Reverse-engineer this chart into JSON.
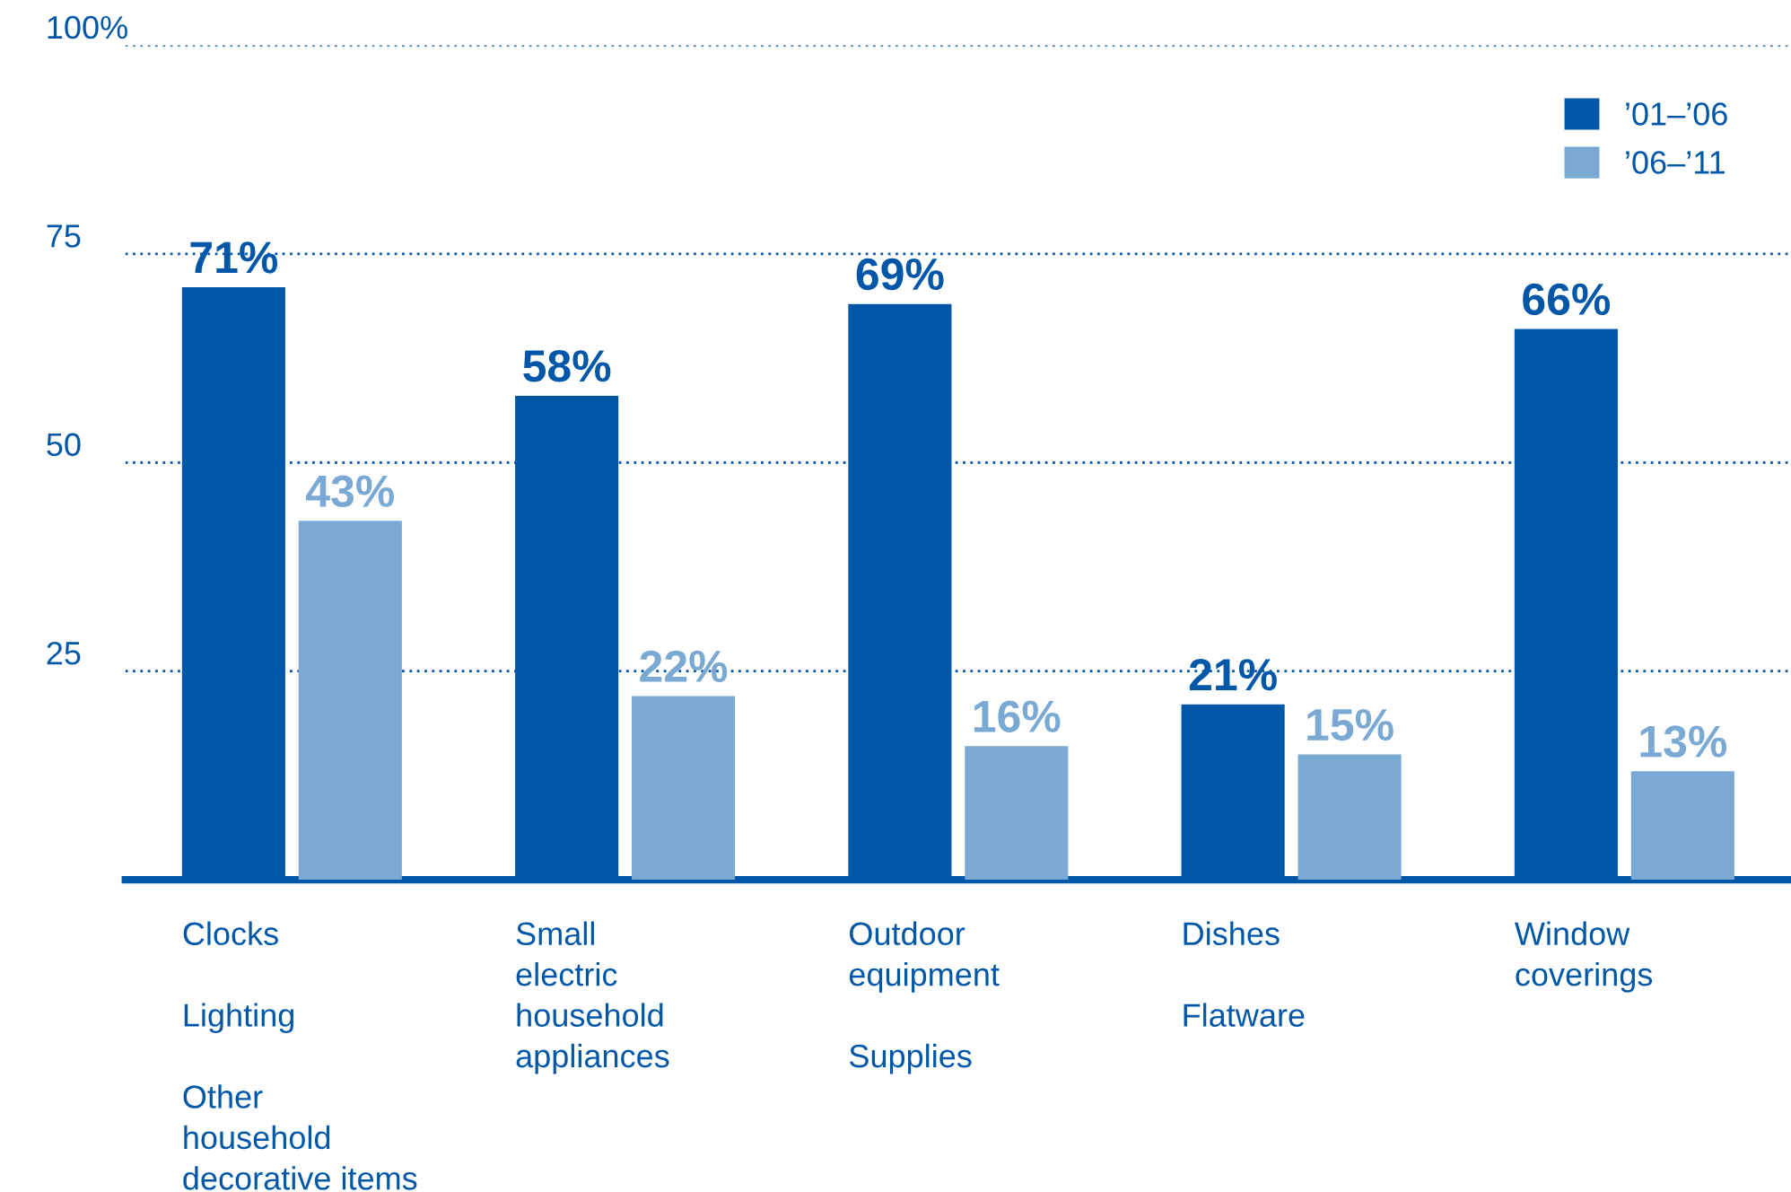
{
  "chart_data": {
    "type": "bar",
    "categories": [
      "Clocks\n\nLighting\n\nOther\nhousehold\ndecorative items",
      "Small\nelectric\nhousehold\nappliances",
      "Outdoor\nequipment\n\nSupplies",
      "Dishes\n\nFlatware",
      "Window\ncoverings"
    ],
    "series": [
      {
        "name": "’01–’06",
        "color": "#0057a8",
        "values": [
          71,
          58,
          69,
          21,
          66
        ],
        "value_labels": [
          "71%",
          "58%",
          "69%",
          "21%",
          "66%"
        ]
      },
      {
        "name": "’06–’11",
        "color": "#7aa9d4",
        "values": [
          43,
          22,
          16,
          15,
          13
        ],
        "value_labels": [
          "43%",
          "22%",
          "16%",
          "15%",
          "13%"
        ]
      }
    ],
    "ylim": [
      0,
      100
    ],
    "yticks": [
      {
        "value": 25,
        "label": "25"
      },
      {
        "value": 50,
        "label": "50"
      },
      {
        "value": 75,
        "label": "75"
      },
      {
        "value": 100,
        "label": "100%"
      }
    ],
    "grid": "y",
    "legend": "top right"
  }
}
